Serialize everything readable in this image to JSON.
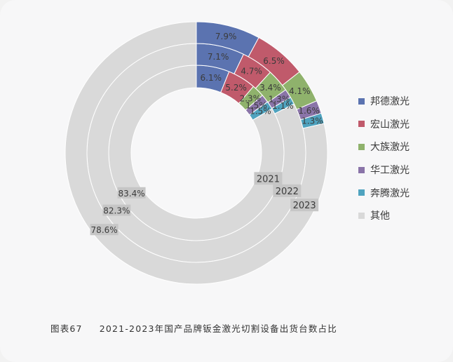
{
  "chart_data": {
    "type": "pie",
    "style": "nested-donut",
    "caption_prefix": "图表67",
    "title": "2021-2023年国产品牌钣金激光切割设备出货台数占比",
    "years": [
      "2021",
      "2022",
      "2023"
    ],
    "series": [
      {
        "name": "邦德激光",
        "color": "#5b73b0",
        "values": [
          6.1,
          7.1,
          7.9
        ]
      },
      {
        "name": "宏山激光",
        "color": "#c05a6b",
        "values": [
          5.2,
          4.7,
          6.5
        ]
      },
      {
        "name": "大族激光",
        "color": "#8fb26c",
        "values": [
          2.3,
          3.4,
          4.1
        ]
      },
      {
        "name": "华工激光",
        "color": "#8a74a8",
        "values": [
          1.5,
          1.3,
          1.6
        ]
      },
      {
        "name": "奔腾激光",
        "color": "#4fa3bf",
        "values": [
          1.5,
          1.1,
          1.3
        ]
      },
      {
        "name": "其他",
        "color": "#d9d9d9",
        "values": [
          83.4,
          82.3,
          78.6
        ]
      }
    ],
    "value_labels": [
      [
        "6.1%",
        "7.1%",
        "7.9%"
      ],
      [
        "5.2%",
        "4.7%",
        "6.5%"
      ],
      [
        "2.3%",
        "3.4%",
        "4.1%"
      ],
      [
        "1.5%",
        "1.3%",
        "1.6%"
      ],
      [
        "1.5%",
        "1.1%",
        "1.3%"
      ],
      [
        "83.4%",
        "82.3%",
        "78.6%"
      ]
    ],
    "legend_position": "right"
  }
}
